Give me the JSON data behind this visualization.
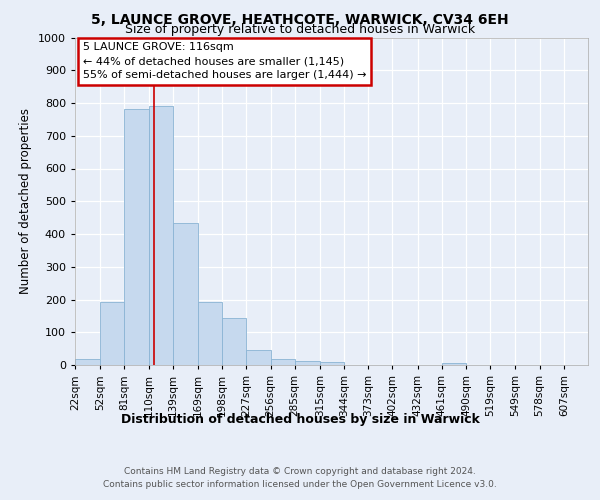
{
  "title1": "5, LAUNCE GROVE, HEATHCOTE, WARWICK, CV34 6EH",
  "title2": "Size of property relative to detached houses in Warwick",
  "xlabel": "Distribution of detached houses by size in Warwick",
  "ylabel": "Number of detached properties",
  "footnote": "Contains HM Land Registry data © Crown copyright and database right 2024.\nContains public sector information licensed under the Open Government Licence v3.0.",
  "bar_labels": [
    "22sqm",
    "52sqm",
    "81sqm",
    "110sqm",
    "139sqm",
    "169sqm",
    "198sqm",
    "227sqm",
    "256sqm",
    "285sqm",
    "315sqm",
    "344sqm",
    "373sqm",
    "402sqm",
    "432sqm",
    "461sqm",
    "490sqm",
    "519sqm",
    "549sqm",
    "578sqm",
    "607sqm"
  ],
  "bar_values": [
    17,
    193,
    783,
    790,
    435,
    193,
    145,
    47,
    17,
    12,
    9,
    0,
    0,
    0,
    0,
    7,
    0,
    0,
    0,
    0,
    0
  ],
  "bar_color": "#c6d9ee",
  "bar_edge_color": "#8ab4d4",
  "vline_color": "#cc0000",
  "ylim": [
    0,
    1000
  ],
  "yticks": [
    0,
    100,
    200,
    300,
    400,
    500,
    600,
    700,
    800,
    900,
    1000
  ],
  "annotation_title": "5 LAUNCE GROVE: 116sqm",
  "annotation_line1": "← 44% of detached houses are smaller (1,145)",
  "annotation_line2": "55% of semi-detached houses are larger (1,444) →",
  "annotation_box_color": "#ffffff",
  "annotation_box_edge": "#cc0000",
  "bg_color": "#e8eef8",
  "plot_bg_color": "#e8eef8",
  "grid_color": "#ffffff",
  "title1_fontsize": 10,
  "title2_fontsize": 9
}
